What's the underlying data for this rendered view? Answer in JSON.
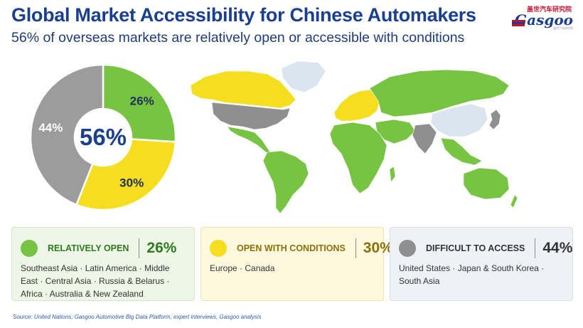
{
  "header": {
    "title": "Global Market Accessibility for Chinese Automakers",
    "subtitle": "56% of overseas markets are relatively open or accessible with conditions"
  },
  "logo": {
    "cn": "盖世汽车研究院",
    "en": "Gasgoo",
    "tagline": "盖世汽车研究院"
  },
  "chart_data": {
    "type": "pie",
    "center_label": "56%",
    "slices": [
      {
        "label": "26%",
        "value": 26,
        "color": "#76c442"
      },
      {
        "label": "30%",
        "value": 30,
        "color": "#f5dd1f"
      },
      {
        "label": "44%",
        "value": 44,
        "color": "#9c9c9c"
      }
    ]
  },
  "legend": [
    {
      "label": "RELATIVELY OPEN",
      "pct": "26%",
      "color": "#76c442",
      "text_color": "#2f7a1e",
      "regions": "Southeast Asia  ·  Latin America  ·  Middle East  ·  Central Asia  ·  Russia & Belarus  ·  Africa  ·  Australia & New Zealand"
    },
    {
      "label": "OPEN WITH CONDITIONS",
      "pct": "30%",
      "color": "#f5dd1f",
      "text_color": "#8a7006",
      "regions": "Europe  ·  Canada"
    },
    {
      "label": "DIFFICULT TO ACCESS",
      "pct": "44%",
      "color": "#8f8f8f",
      "text_color": "#333333",
      "regions": "United States  ·  Japan & South Korea  ·  South Asia"
    }
  ],
  "source": "Source: United Nations, Gasgoo Automotive Big Data Platform, expert interviews, Gasgoo analysis"
}
